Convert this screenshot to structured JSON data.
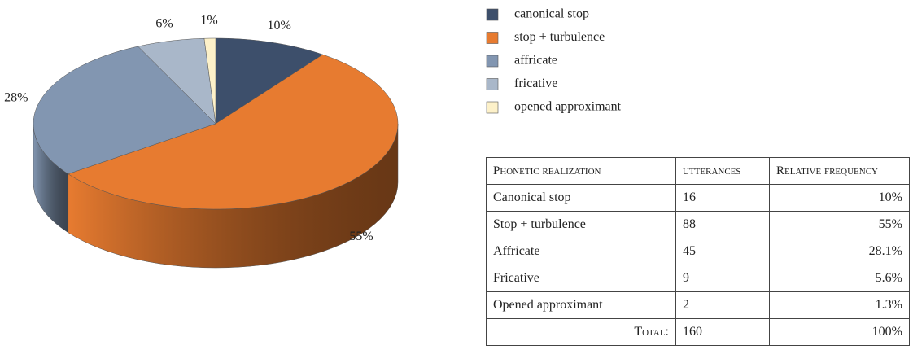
{
  "chart_data": {
    "type": "pie",
    "categories": [
      "canonical stop",
      "stop + turbulence",
      "affricate",
      "fricative",
      "opened approximant"
    ],
    "values": [
      10,
      55,
      28,
      6,
      1
    ],
    "value_labels": [
      "10%",
      "55%",
      "28%",
      "6%",
      "1%"
    ],
    "colors": [
      "#3d4f6b",
      "#e77b30",
      "#8296b1",
      "#a9b7c9",
      "#fdf1c9"
    ]
  },
  "table": {
    "header": [
      "Phonetic realization",
      "utterances",
      "Relative frequency"
    ],
    "rows": [
      [
        "Canonical stop",
        "16",
        "10%"
      ],
      [
        "Stop + turbulence",
        "88",
        "55%"
      ],
      [
        "Affricate",
        "45",
        "28.1%"
      ],
      [
        "Fricative",
        "9",
        "5.6%"
      ],
      [
        "Opened approximant",
        "2",
        "1.3%"
      ]
    ],
    "total": [
      "Total:",
      "160",
      "100%"
    ]
  }
}
